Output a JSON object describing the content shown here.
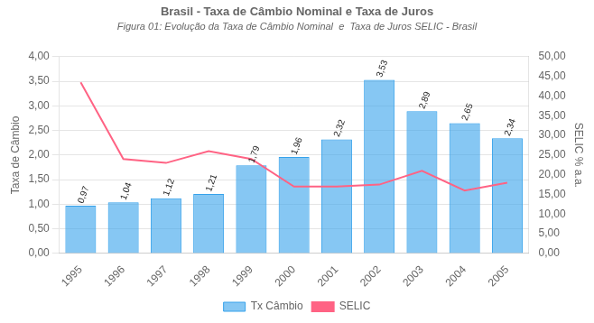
{
  "chart_data": {
    "type": "bar",
    "title": "Brasil - Taxa de Câmbio Nominal e Taxa de Juros",
    "subtitle": "Figura 01: Evolução da Taxa de Câmbio Nominal  e  Taxa de Juros SELIC - Brasil",
    "categories": [
      "1995",
      "1996",
      "1997",
      "1998",
      "1999",
      "2000",
      "2001",
      "2002",
      "2003",
      "2004",
      "2005"
    ],
    "series": [
      {
        "name": "Tx Câmbio",
        "type": "bar",
        "values": [
          0.97,
          1.04,
          1.12,
          1.21,
          1.79,
          1.96,
          2.32,
          3.53,
          2.89,
          2.65,
          2.34
        ],
        "value_labels": [
          "0,97",
          "1,04",
          "1,12",
          "1,21",
          "1,79",
          "1,96",
          "2,32",
          "3,53",
          "2,89",
          "2,65",
          "2,34"
        ]
      },
      {
        "name": "SELIC",
        "type": "line",
        "axis": "y2",
        "values": [
          43.5,
          24.0,
          23.0,
          26.0,
          24.0,
          17.0,
          17.0,
          17.5,
          21.0,
          16.0,
          18.0
        ]
      }
    ],
    "y_label": "Taxa de Câmbio",
    "y2_label": "SELIC % a.a.",
    "ylim": [
      0.0,
      4.0
    ],
    "yticks": [
      {
        "value": 0.0,
        "label": "0,00"
      },
      {
        "value": 0.5,
        "label": "0,50"
      },
      {
        "value": 1.0,
        "label": "1,00"
      },
      {
        "value": 1.5,
        "label": "1,50"
      },
      {
        "value": 2.0,
        "label": "2,00"
      },
      {
        "value": 2.5,
        "label": "2,50"
      },
      {
        "value": 3.0,
        "label": "3,00"
      },
      {
        "value": 3.5,
        "label": "3,50"
      },
      {
        "value": 4.0,
        "label": "4,00"
      }
    ],
    "y2lim": [
      0.0,
      50.0
    ],
    "y2ticks": [
      {
        "value": 0.0,
        "label": "0,00"
      },
      {
        "value": 5.0,
        "label": "5,00"
      },
      {
        "value": 10.0,
        "label": "10,00"
      },
      {
        "value": 15.0,
        "label": "15,00"
      },
      {
        "value": 20.0,
        "label": "20,00"
      },
      {
        "value": 25.0,
        "label": "25,00"
      },
      {
        "value": 30.0,
        "label": "30,00"
      },
      {
        "value": 35.0,
        "label": "35,00"
      },
      {
        "value": 40.0,
        "label": "40,00"
      },
      {
        "value": 45.0,
        "label": "45,00"
      },
      {
        "value": 50.0,
        "label": "50,00"
      }
    ],
    "grid": true,
    "legend": "bottom",
    "data_labels": true
  }
}
